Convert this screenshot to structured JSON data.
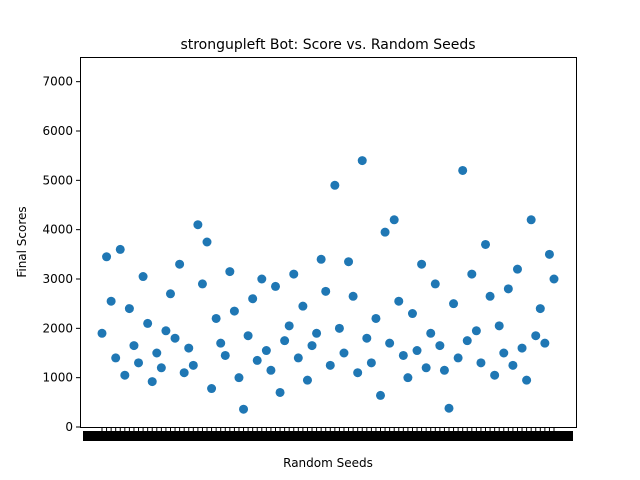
{
  "chart_data": {
    "type": "scatter",
    "title": "strongupleft Bot: Score vs. Random Seeds",
    "xlabel": "Random Seeds",
    "ylabel": "Final Scores",
    "ylim": [
      0,
      7500
    ],
    "yticks": [
      0,
      1000,
      2000,
      3000,
      4000,
      5000,
      6000,
      7000
    ],
    "x_tick_labels_overlapping": true,
    "grid": false,
    "legend": "none",
    "marker_color": "#1f77b4",
    "series": [
      {
        "x": [
          0,
          1,
          2,
          3,
          4,
          5,
          6,
          7,
          8,
          9,
          10,
          11,
          12,
          13,
          14,
          15,
          16,
          17,
          18,
          19,
          20,
          21,
          22,
          23,
          24,
          25,
          26,
          27,
          28,
          29,
          30,
          31,
          32,
          33,
          34,
          35,
          36,
          37,
          38,
          39,
          40,
          41,
          42,
          43,
          44,
          45,
          46,
          47,
          48,
          49,
          50,
          51,
          52,
          53,
          54,
          55,
          56,
          57,
          58,
          59,
          60,
          61,
          62,
          63,
          64,
          65,
          66,
          67,
          68,
          69,
          70,
          71,
          72,
          73,
          74,
          75,
          76,
          77,
          78,
          79,
          80,
          81,
          82,
          83,
          84,
          85,
          86,
          87,
          88,
          89,
          90,
          91,
          92,
          93,
          94,
          95,
          96,
          97,
          98,
          99
        ],
        "y": [
          1900,
          3450,
          2550,
          1400,
          3600,
          1050,
          2400,
          1650,
          1300,
          3050,
          2100,
          920,
          1500,
          1200,
          1950,
          2700,
          1800,
          3300,
          1100,
          1600,
          1250,
          4100,
          2900,
          3750,
          780,
          2200,
          1700,
          1450,
          3150,
          2350,
          1000,
          360,
          1850,
          2600,
          1350,
          3000,
          1550,
          1150,
          2850,
          700,
          1750,
          2050,
          3100,
          1400,
          2450,
          950,
          1650,
          1900,
          3400,
          2750,
          1250,
          4900,
          2000,
          1500,
          3350,
          2650,
          1100,
          5400,
          1800,
          1300,
          2200,
          640,
          3950,
          1700,
          4200,
          2550,
          1450,
          1000,
          2300,
          1550,
          3300,
          1200,
          1900,
          2900,
          1650,
          1150,
          380,
          2500,
          1400,
          5200,
          1750,
          3100,
          1950,
          1300,
          3700,
          2650,
          1050,
          2050,
          1500,
          2800,
          1250,
          3200,
          1600,
          950,
          4200,
          1850,
          2400,
          1700,
          3500,
          3000
        ]
      }
    ]
  }
}
